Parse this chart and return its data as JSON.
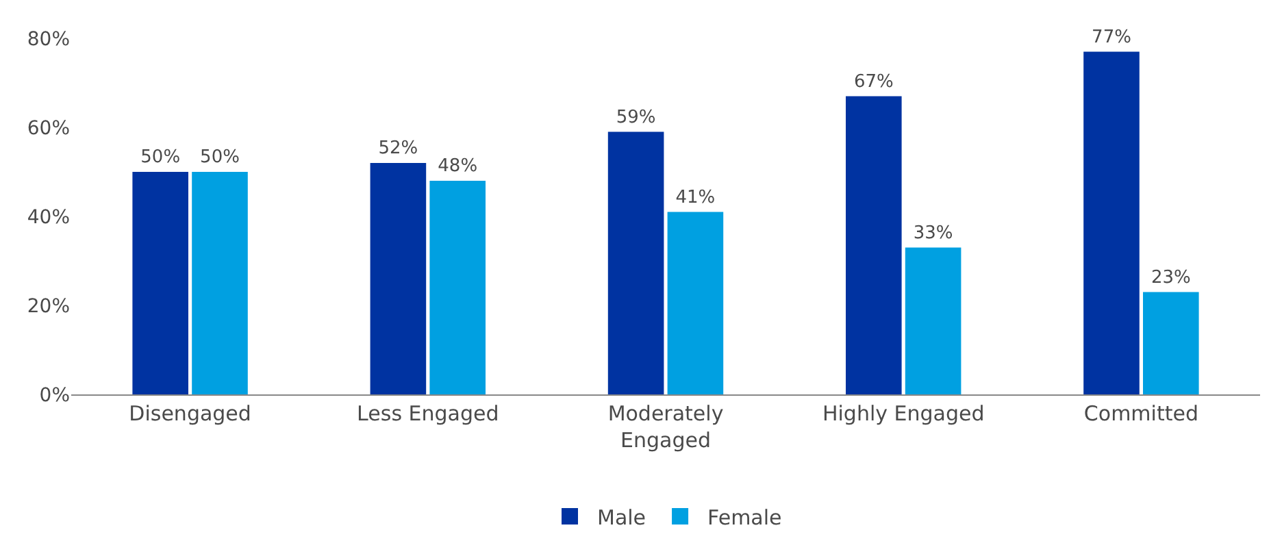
{
  "chart_data": {
    "type": "bar",
    "categories": [
      "Disengaged",
      "Less Engaged",
      "Moderately Engaged",
      "Highly Engaged",
      "Committed"
    ],
    "series": [
      {
        "name": "Male",
        "color": "#0033a1",
        "values": [
          50,
          52,
          59,
          67,
          77
        ],
        "value_labels": [
          "50%",
          "52%",
          "59%",
          "67%",
          "77%"
        ]
      },
      {
        "name": "Female",
        "color": "#00a0e1",
        "values": [
          50,
          48,
          41,
          33,
          23
        ],
        "value_labels": [
          "50%",
          "48%",
          "41%",
          "33%",
          "23%"
        ]
      }
    ],
    "ylim": [
      0,
      80
    ],
    "yticks": [
      {
        "value": 0,
        "label": "0%"
      },
      {
        "value": 20,
        "label": "20%"
      },
      {
        "value": 40,
        "label": "40%"
      },
      {
        "value": 60,
        "label": "60%"
      },
      {
        "value": 80,
        "label": "80%"
      }
    ],
    "grid": false,
    "legend": "bottom"
  }
}
